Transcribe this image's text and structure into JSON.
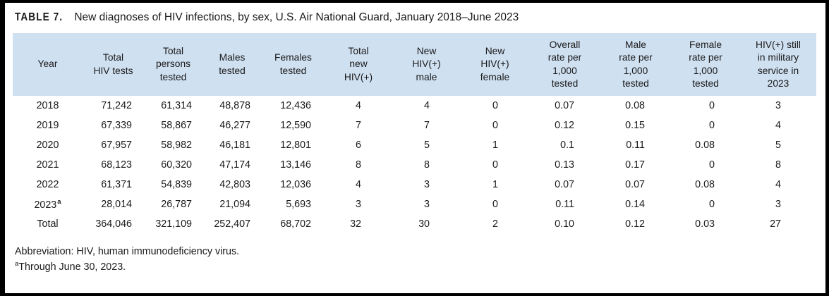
{
  "colors": {
    "header_bg": "#cfe0f1",
    "frame": "#000000",
    "text": "#1a1a1a",
    "background": "#ffffff"
  },
  "title": {
    "label": "TABLE 7.",
    "text": "New diagnoses of HIV infections, by sex, U.S. Air National Guard, January 2018–June 2023"
  },
  "chart_data": {
    "type": "table",
    "title": "TABLE 7. New diagnoses of HIV infections, by sex, U.S. Air National Guard, January 2018–June 2023",
    "columns": [
      "Year",
      "Total\nHIV tests",
      "Total\npersons\ntested",
      "Males\ntested",
      "Females\ntested",
      "Total\nnew\nHIV(+)",
      "New\nHIV(+)\nmale",
      "New\nHIV(+)\nfemale",
      "Overall\nrate per\n1,000\ntested",
      "Male\nrate per\n1,000\ntested",
      "Female\nrate per\n1,000\ntested",
      "HIV(+) still\nin military\nservice in\n2023"
    ],
    "rows": [
      [
        "2018",
        "71,242",
        "61,314",
        "48,878",
        "12,436",
        "4",
        "4",
        "0",
        "0.07",
        "0.08",
        "0",
        "3"
      ],
      [
        "2019",
        "67,339",
        "58,867",
        "46,277",
        "12,590",
        "7",
        "7",
        "0",
        "0.12",
        "0.15",
        "0",
        "4"
      ],
      [
        "2020",
        "67,957",
        "58,982",
        "46,181",
        "12,801",
        "6",
        "5",
        "1",
        "0.1",
        "0.11",
        "0.08",
        "5"
      ],
      [
        "2021",
        "68,123",
        "60,320",
        "47,174",
        "13,146",
        "8",
        "8",
        "0",
        "0.13",
        "0.17",
        "0",
        "8"
      ],
      [
        "2022",
        "61,371",
        "54,839",
        "42,803",
        "12,036",
        "4",
        "3",
        "1",
        "0.07",
        "0.07",
        "0.08",
        "4"
      ],
      [
        "2023",
        "28,014",
        "26,787",
        "21,094",
        "5,693",
        "3",
        "3",
        "0",
        "0.11",
        "0.14",
        "0",
        "3"
      ],
      [
        "Total",
        "364,046",
        "321,109",
        "252,407",
        "68,702",
        "32",
        "30",
        "2",
        "0.10",
        "0.12",
        "0.03",
        "27"
      ]
    ],
    "row_footnote": {
      "row_index": 5,
      "column_index": 0,
      "marker": "a"
    }
  },
  "footnotes": {
    "abbreviation": "Abbreviation: HIV, human immunodeficiency virus.",
    "marker": "a",
    "note": "Through June 30, 2023."
  }
}
